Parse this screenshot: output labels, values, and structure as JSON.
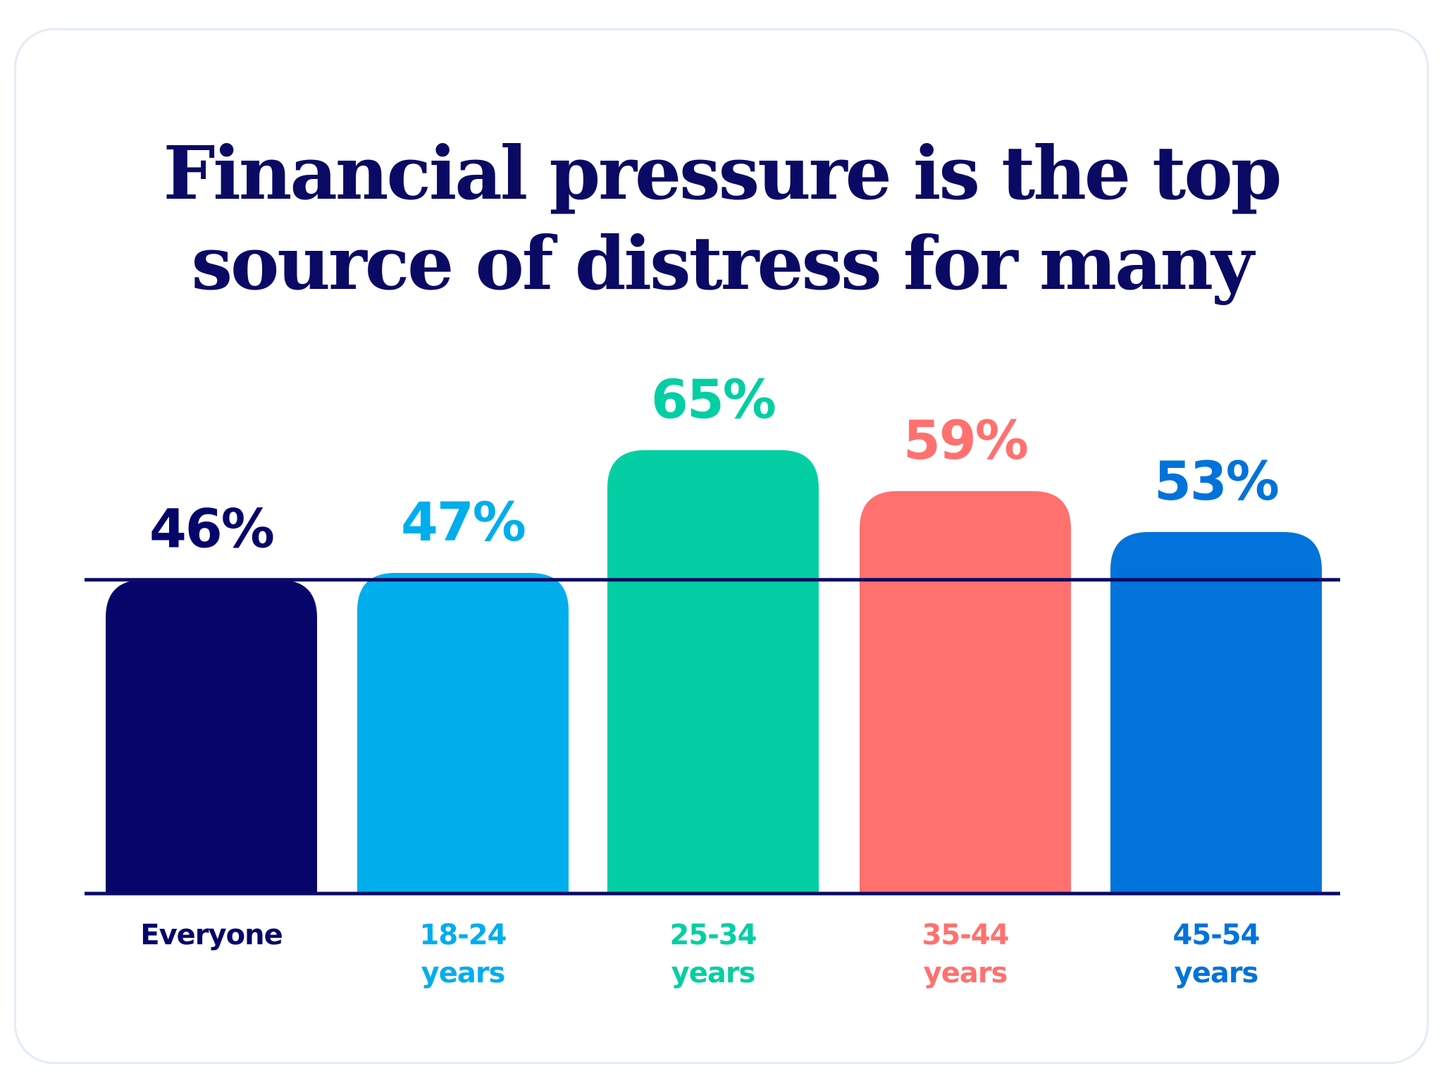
{
  "chart_data": {
    "type": "bar",
    "title_lines": [
      "Financial pressure is the top",
      "source of distress for many"
    ],
    "categories": [
      {
        "lines": [
          "Everyone"
        ]
      },
      {
        "lines": [
          "18-24",
          "years"
        ]
      },
      {
        "lines": [
          "25-34",
          "years"
        ]
      },
      {
        "lines": [
          "35-44",
          "years"
        ]
      },
      {
        "lines": [
          "45-54",
          "years"
        ]
      }
    ],
    "values": [
      46,
      47,
      65,
      59,
      53
    ],
    "value_labels": [
      "46%",
      "47%",
      "65%",
      "59%",
      "53%"
    ],
    "colors": [
      "#05056a",
      "#00aeec",
      "#04cea3",
      "#ff716e",
      "#0173da"
    ],
    "reference_line": {
      "value": 46,
      "color": "#0a0a64"
    },
    "ylim": [
      0,
      100
    ],
    "grid": false,
    "legend": "none"
  }
}
